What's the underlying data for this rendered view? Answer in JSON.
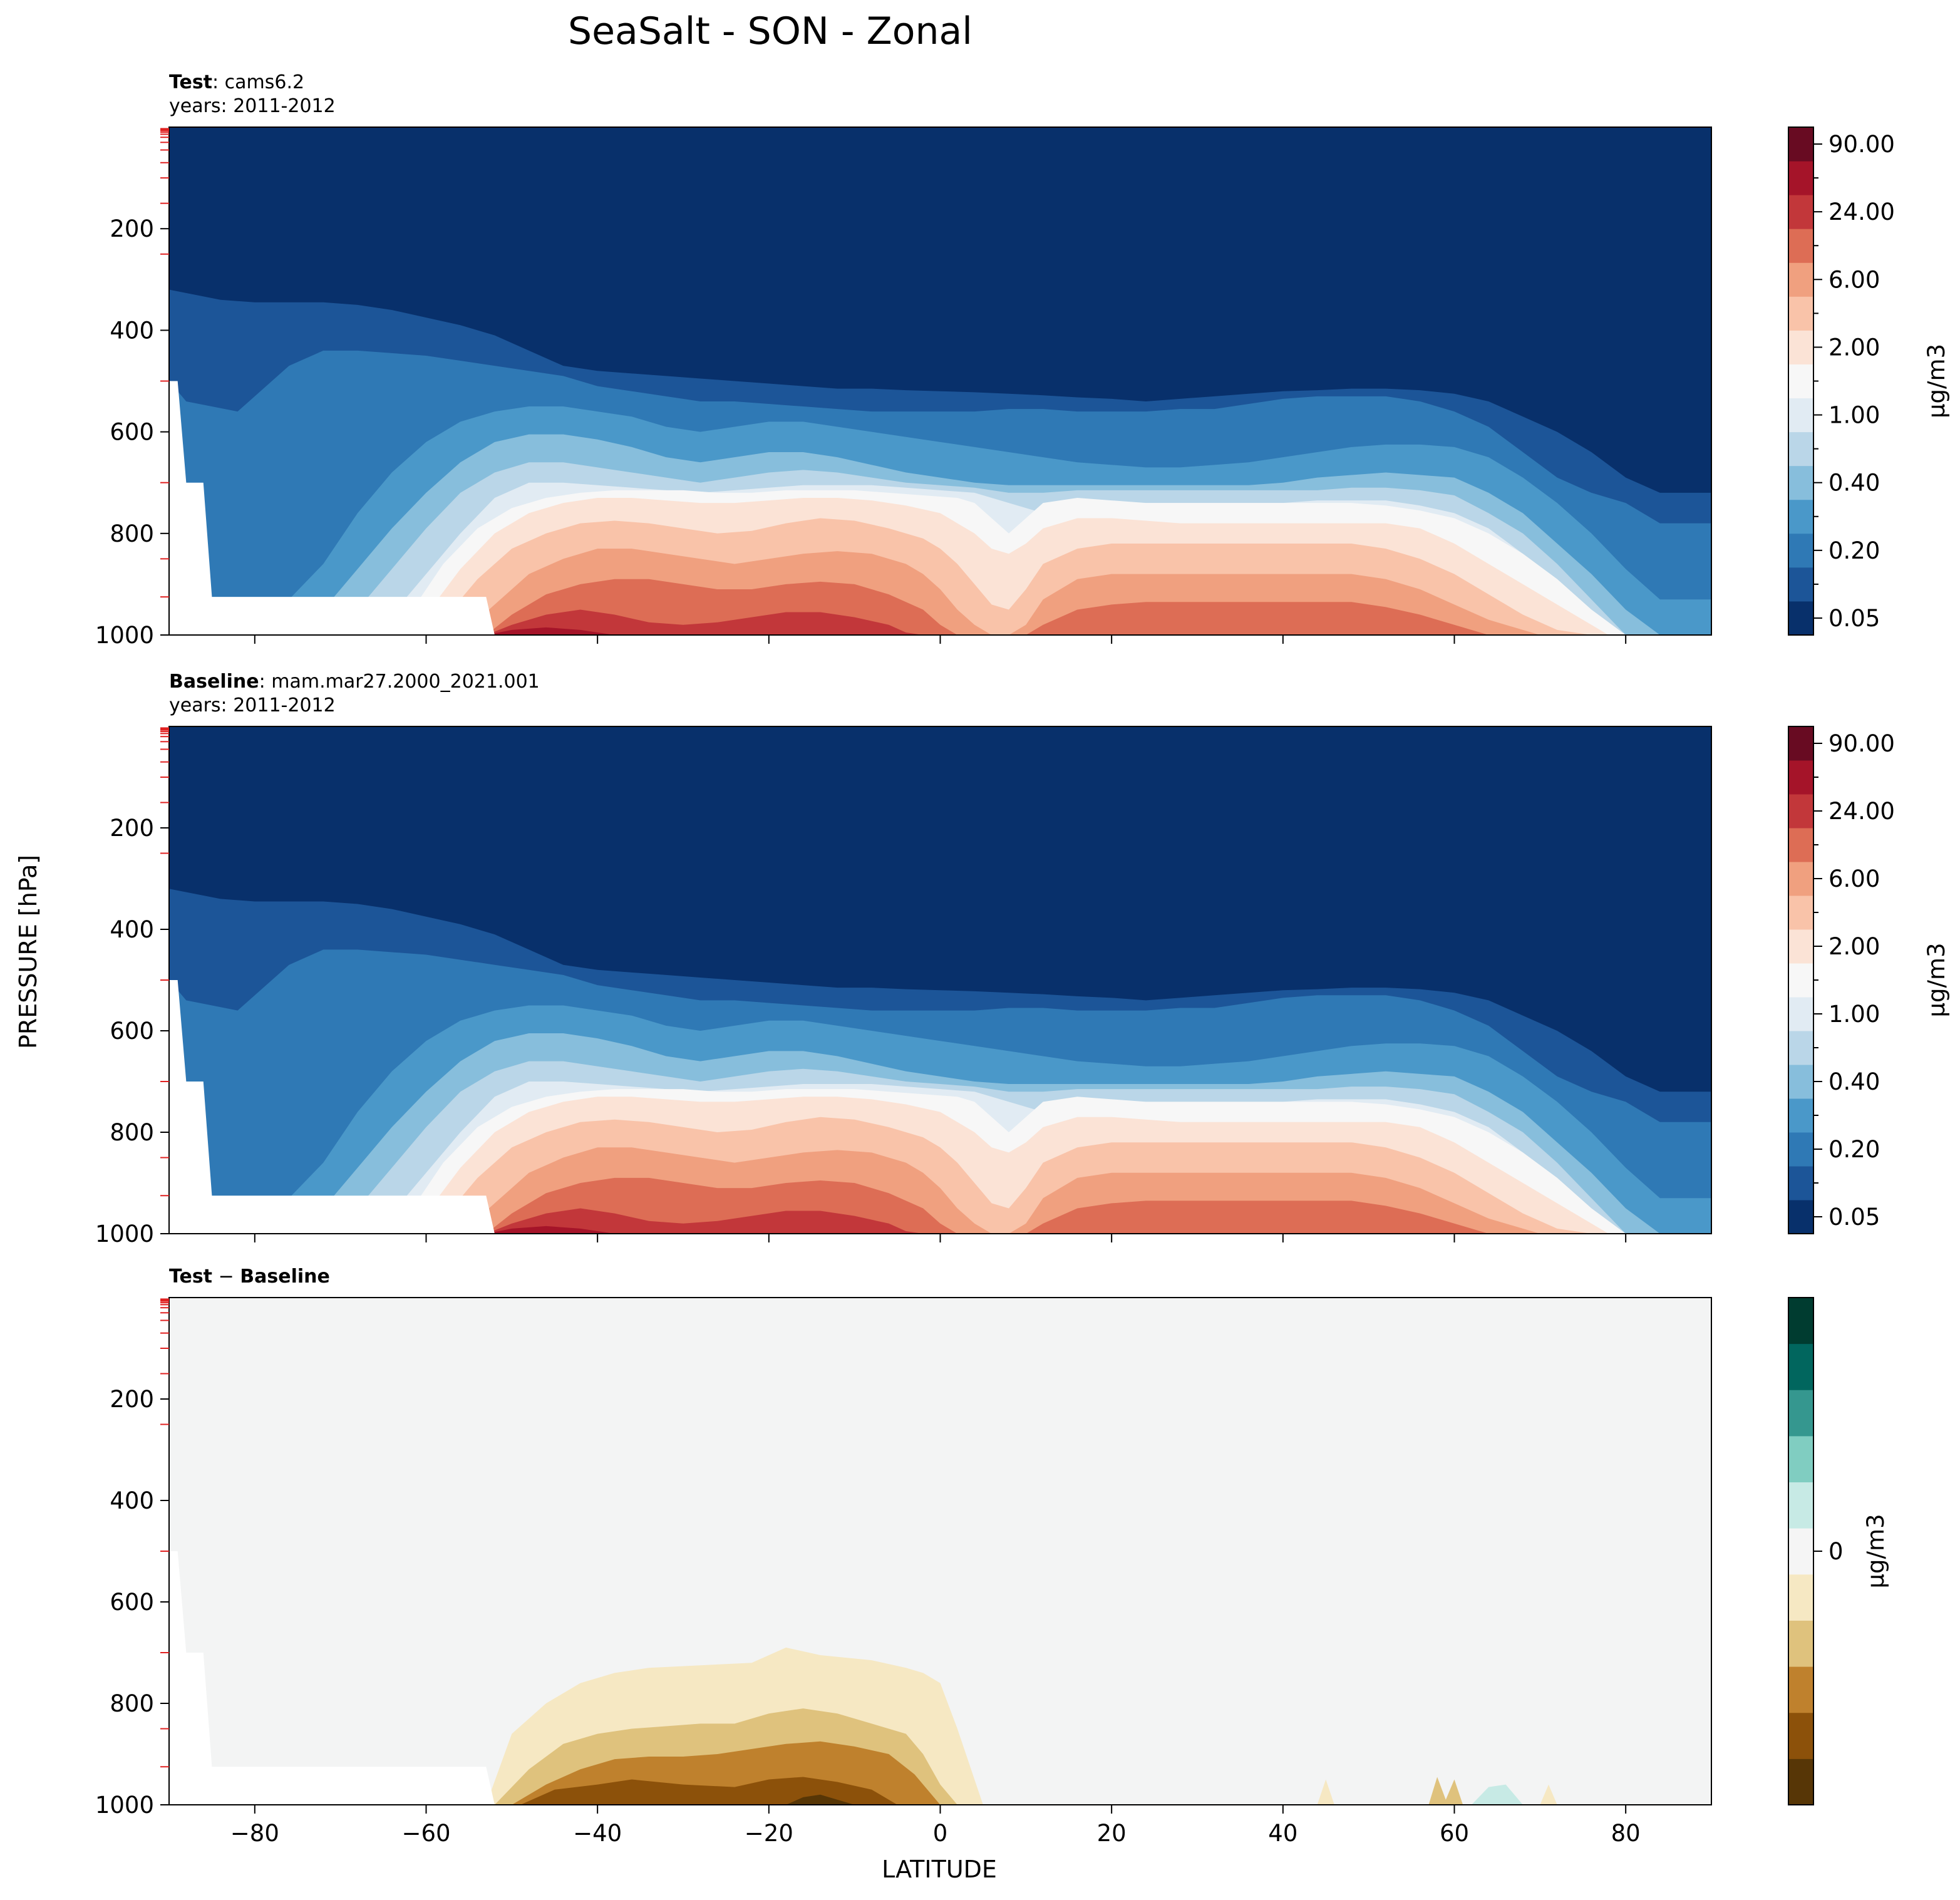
{
  "figure": {
    "title": "SeaSalt - SON - Zonal",
    "ylabel": "PRESSURE [hPa]",
    "xlabel": "LATITUDE"
  },
  "colors": {
    "rdbu": [
      "#08306b",
      "#1c5598",
      "#2f79b5",
      "#4a98c9",
      "#87bedc",
      "#bad6e8",
      "#e1ebf3",
      "#f7f7f7",
      "#fbe3d6",
      "#f9c3a9",
      "#f0a07f",
      "#dd6d55",
      "#c2373a",
      "#a51429",
      "#680b22"
    ],
    "brbg": [
      "#573606",
      "#8c510a",
      "#bf812d",
      "#dfc27d",
      "#f6e8c3",
      "#f5f5f5",
      "#c7eae5",
      "#80cdc1",
      "#35978f",
      "#01665e",
      "#003c30"
    ],
    "background_fill": "#f3f4f4"
  },
  "chart_data": [
    {
      "type": "contour",
      "panel": "test",
      "label_bold": "Test",
      "label_text": ": cams6.2",
      "years": "years: 2011-2012",
      "x_ticks": [
        -80,
        -60,
        -40,
        -20,
        0,
        20,
        40,
        60,
        80
      ],
      "x_tick_labels": [
        "",
        "",
        "",
        "",
        "",
        "",
        "",
        "",
        ""
      ],
      "y_ticks": [
        200,
        400,
        600,
        800,
        1000
      ],
      "y_tick_labels": [
        "200",
        "400",
        "600",
        "800",
        "1000"
      ],
      "xlim": [
        -90,
        90
      ],
      "ylim": [
        1000,
        0
      ],
      "colorbar_label": "μg/m3",
      "colorbar_tick_labels": [
        "0.05",
        "0.20",
        "0.40",
        "1.00",
        "2.00",
        "6.00",
        "24.00",
        "90.00"
      ]
    },
    {
      "type": "contour",
      "panel": "baseline",
      "label_bold": "Baseline",
      "label_text": ": mam.mar27.2000_2021.001",
      "years": "years: 2011-2012",
      "x_ticks": [
        -80,
        -60,
        -40,
        -20,
        0,
        20,
        40,
        60,
        80
      ],
      "x_tick_labels": [
        "",
        "",
        "",
        "",
        "",
        "",
        "",
        "",
        ""
      ],
      "y_ticks": [
        200,
        400,
        600,
        800,
        1000
      ],
      "y_tick_labels": [
        "200",
        "400",
        "600",
        "800",
        "1000"
      ],
      "xlim": [
        -90,
        90
      ],
      "ylim": [
        1000,
        0
      ],
      "colorbar_label": "μg/m3",
      "colorbar_tick_labels": [
        "0.05",
        "0.20",
        "0.40",
        "1.00",
        "2.00",
        "6.00",
        "24.00",
        "90.00"
      ]
    },
    {
      "type": "contour",
      "panel": "diff",
      "label_bold": "Test",
      "label_sep": " − ",
      "label_bold2": "Baseline",
      "x_ticks": [
        -80,
        -60,
        -40,
        -20,
        0,
        20,
        40,
        60,
        80
      ],
      "x_tick_labels": [
        "−80",
        "−60",
        "−40",
        "−20",
        "0",
        "20",
        "40",
        "60",
        "80"
      ],
      "y_ticks": [
        200,
        400,
        600,
        800,
        1000
      ],
      "y_tick_labels": [
        "200",
        "400",
        "600",
        "800",
        "1000"
      ],
      "xlim": [
        -90,
        90
      ],
      "ylim": [
        1000,
        0
      ],
      "colorbar_label": "μg/m3",
      "colorbar_tick_labels": [
        "0"
      ]
    }
  ]
}
